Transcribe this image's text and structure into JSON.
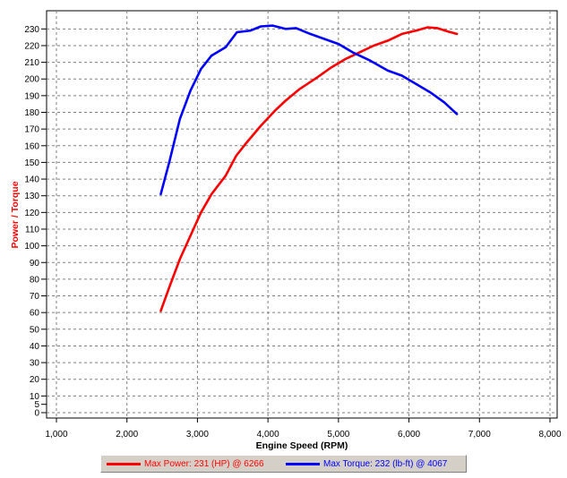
{
  "chart_data": {
    "type": "line",
    "xlabel": "Engine Speed (RPM)",
    "ylabel": "Power / Torque",
    "xlim": [
      1000,
      8000
    ],
    "ylim": [
      0,
      235
    ],
    "x_ticks": [
      "1,000",
      "2,000",
      "3,000",
      "4,000",
      "5,000",
      "6,000",
      "7,000",
      "8,000"
    ],
    "y_ticks": [
      "0",
      "5",
      "10",
      "20",
      "30",
      "40",
      "50",
      "60",
      "70",
      "80",
      "90",
      "100",
      "110",
      "120",
      "130",
      "140",
      "150",
      "160",
      "170",
      "180",
      "190",
      "200",
      "210",
      "220",
      "230"
    ],
    "grid": true,
    "legend_position": "bottom",
    "series": [
      {
        "name": "Max Power: 231 (HP) @ 6266",
        "color": "#ff0000",
        "points": [
          [
            2480,
            61
          ],
          [
            2600,
            75
          ],
          [
            2750,
            92
          ],
          [
            2900,
            106
          ],
          [
            3050,
            120
          ],
          [
            3200,
            131
          ],
          [
            3400,
            142
          ],
          [
            3550,
            154
          ],
          [
            3700,
            162
          ],
          [
            3900,
            172
          ],
          [
            4100,
            181
          ],
          [
            4250,
            187
          ],
          [
            4450,
            194
          ],
          [
            4700,
            201
          ],
          [
            4900,
            207
          ],
          [
            5100,
            212
          ],
          [
            5300,
            216
          ],
          [
            5500,
            220
          ],
          [
            5700,
            223
          ],
          [
            5900,
            227
          ],
          [
            6100,
            229
          ],
          [
            6266,
            231
          ],
          [
            6400,
            230.5
          ],
          [
            6550,
            228.5
          ],
          [
            6680,
            227
          ]
        ]
      },
      {
        "name": "Max Torque: 232 (lb-ft) @ 4067",
        "color": "#0000ff",
        "points": [
          [
            2480,
            131
          ],
          [
            2600,
            150
          ],
          [
            2750,
            176
          ],
          [
            2900,
            193
          ],
          [
            3050,
            206
          ],
          [
            3200,
            214
          ],
          [
            3400,
            219
          ],
          [
            3560,
            228
          ],
          [
            3750,
            229
          ],
          [
            3900,
            231.5
          ],
          [
            4067,
            232
          ],
          [
            4250,
            230
          ],
          [
            4400,
            230.5
          ],
          [
            4600,
            227
          ],
          [
            4800,
            224
          ],
          [
            5000,
            221
          ],
          [
            5200,
            216
          ],
          [
            5450,
            211
          ],
          [
            5700,
            205
          ],
          [
            5900,
            202
          ],
          [
            6100,
            197
          ],
          [
            6300,
            192
          ],
          [
            6500,
            186
          ],
          [
            6680,
            179
          ]
        ]
      }
    ]
  }
}
